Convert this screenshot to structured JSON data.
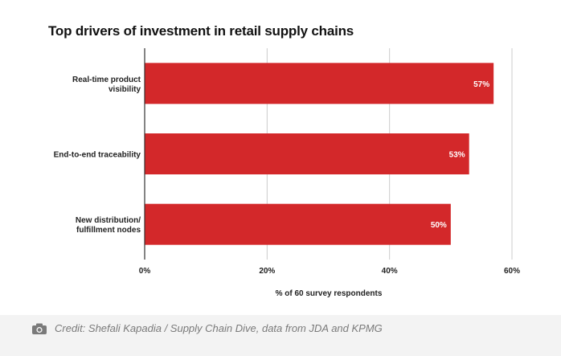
{
  "chart_data": {
    "type": "bar",
    "orientation": "horizontal",
    "title": "Top drivers of investment in retail supply chains",
    "categories": [
      [
        "Real-time product",
        "visibility"
      ],
      [
        "End-to-end traceability"
      ],
      [
        "New distribution/",
        "fulfillment nodes"
      ]
    ],
    "values": [
      57,
      53,
      50
    ],
    "value_labels": [
      "57%",
      "53%",
      "50%"
    ],
    "xlabel": "% of 60 survey respondents",
    "xlim": [
      0,
      60
    ],
    "xticks": [
      0,
      20,
      40,
      60
    ],
    "xtick_labels": [
      "0%",
      "20%",
      "40%",
      "60%"
    ],
    "grid": "vertical",
    "colors": {
      "bar": "#d3282a",
      "grid": "#cccccc",
      "axis": "#333333"
    }
  },
  "footer": {
    "credit": "Credit: Shefali Kapadia / Supply Chain Dive, data from JDA and KPMG",
    "icon": "camera-icon"
  }
}
